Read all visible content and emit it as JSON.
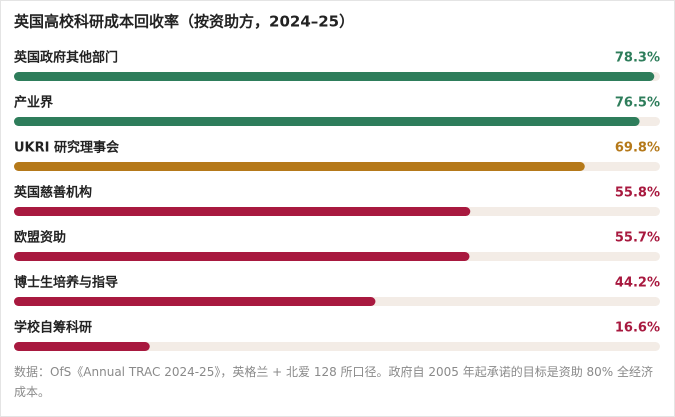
{
  "chart_data": {
    "type": "bar",
    "orientation": "horizontal",
    "title": "英国高校科研成本回收率（按资助方，2024–25）",
    "categories": [
      "英国政府其他部门",
      "产业界",
      "UKRI 研究理事会",
      "英国慈善机构",
      "欧盟资助",
      "博士生培养与指导",
      "学校自筹科研"
    ],
    "values": [
      78.3,
      76.5,
      69.8,
      55.8,
      55.7,
      44.2,
      16.6
    ],
    "value_labels": [
      "78.3%",
      "76.5%",
      "69.8%",
      "55.8%",
      "55.7%",
      "44.2%",
      "16.6%"
    ],
    "colors": [
      "#2e7d5b",
      "#2e7d5b",
      "#b5791a",
      "#a8193f",
      "#a8193f",
      "#a8193f",
      "#a8193f"
    ],
    "xlim": [
      0,
      79
    ],
    "note": "数据：OfS《Annual TRAC 2024-25》，英格兰 + 北爱 128 所口径。政府自 2005 年起承诺的目标是资助 80% 全经济成本。"
  }
}
